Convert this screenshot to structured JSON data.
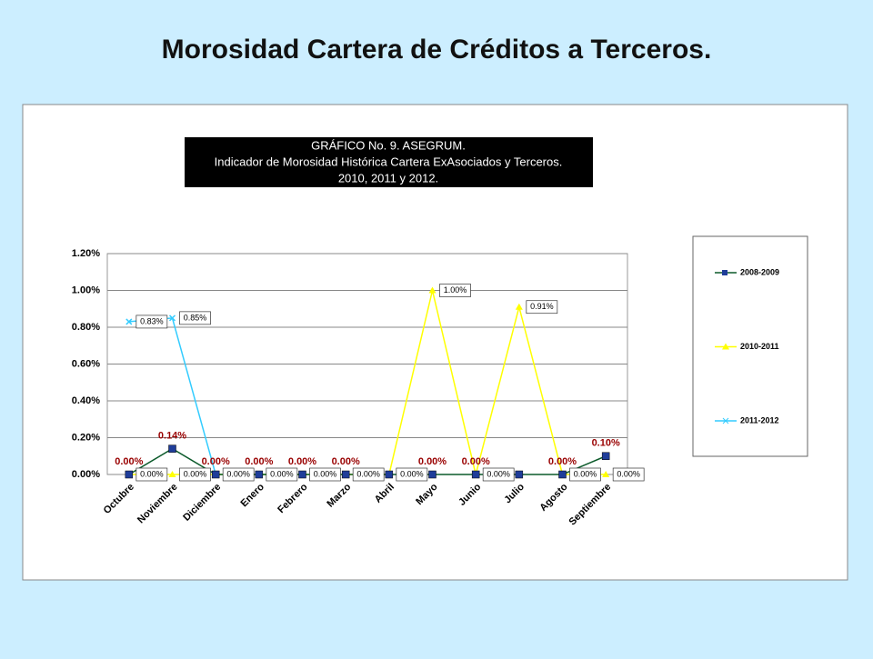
{
  "slide_title": "Morosidad Cartera de Créditos a Terceros.",
  "chart_data": {
    "type": "line",
    "title": [
      "GRÁFICO No. 9. ASEGRUM.",
      "Indicador de Morosidad Histórica Cartera ExAsociados y Terceros.",
      "2010, 2011 y 2012."
    ],
    "categories": [
      "Octubre",
      "Noviembre",
      "Diciembre",
      "Enero",
      "Febrero",
      "Marzo",
      "Abril",
      "Mayo",
      "Junio",
      "Julio",
      "Agosto",
      "Septiembre"
    ],
    "ylim": [
      0,
      1.2
    ],
    "yticks": [
      {
        "value": 0,
        "label": "0.00%"
      },
      {
        "value": 0.2,
        "label": "0.20%"
      },
      {
        "value": 0.4,
        "label": "0.40%"
      },
      {
        "value": 0.6,
        "label": "0.60%"
      },
      {
        "value": 0.8,
        "label": "0.80%"
      },
      {
        "value": 1.0,
        "label": "1.00%"
      },
      {
        "value": 1.2,
        "label": "1.20%"
      }
    ],
    "grid": true,
    "legend": "right",
    "series": [
      {
        "name": "2008-2009",
        "color": "#1f3d99",
        "line_color": "#0b5a2a",
        "marker": "square",
        "values": [
          0,
          0.14,
          0,
          0,
          0,
          0,
          0,
          0,
          0,
          0,
          0,
          0.1
        ],
        "value_labels": [
          "0.00%",
          "0.14%",
          "0.00%",
          "0.00%",
          "0.00%",
          "0.00%",
          null,
          "0.00%",
          "0.00%",
          null,
          "0.00%",
          "0.10%"
        ]
      },
      {
        "name": "2010-2011",
        "color": "#ffff00",
        "line_color": "#ffff00",
        "marker": "triangle",
        "values": [
          0,
          0,
          0,
          0,
          0,
          0,
          0,
          1.0,
          0,
          0.91,
          0,
          0
        ],
        "value_labels": [
          "0.00%",
          "0.00%",
          "0.00%",
          "0.00%",
          "0.00%",
          "0.00%",
          "0.00%",
          "1.00%",
          "0.00%",
          "0.91%",
          "0.00%",
          "0.00%"
        ]
      },
      {
        "name": "2011-2012",
        "color": "#33ccff",
        "line_color": "#33ccff",
        "marker": "x",
        "values": [
          0.83,
          0.85,
          0,
          0,
          0,
          0,
          null,
          null,
          null,
          null,
          null,
          null
        ],
        "value_labels": [
          "0.83%",
          "0.85%",
          null,
          null,
          null,
          null,
          null,
          null,
          null,
          null,
          null,
          null
        ]
      }
    ]
  }
}
